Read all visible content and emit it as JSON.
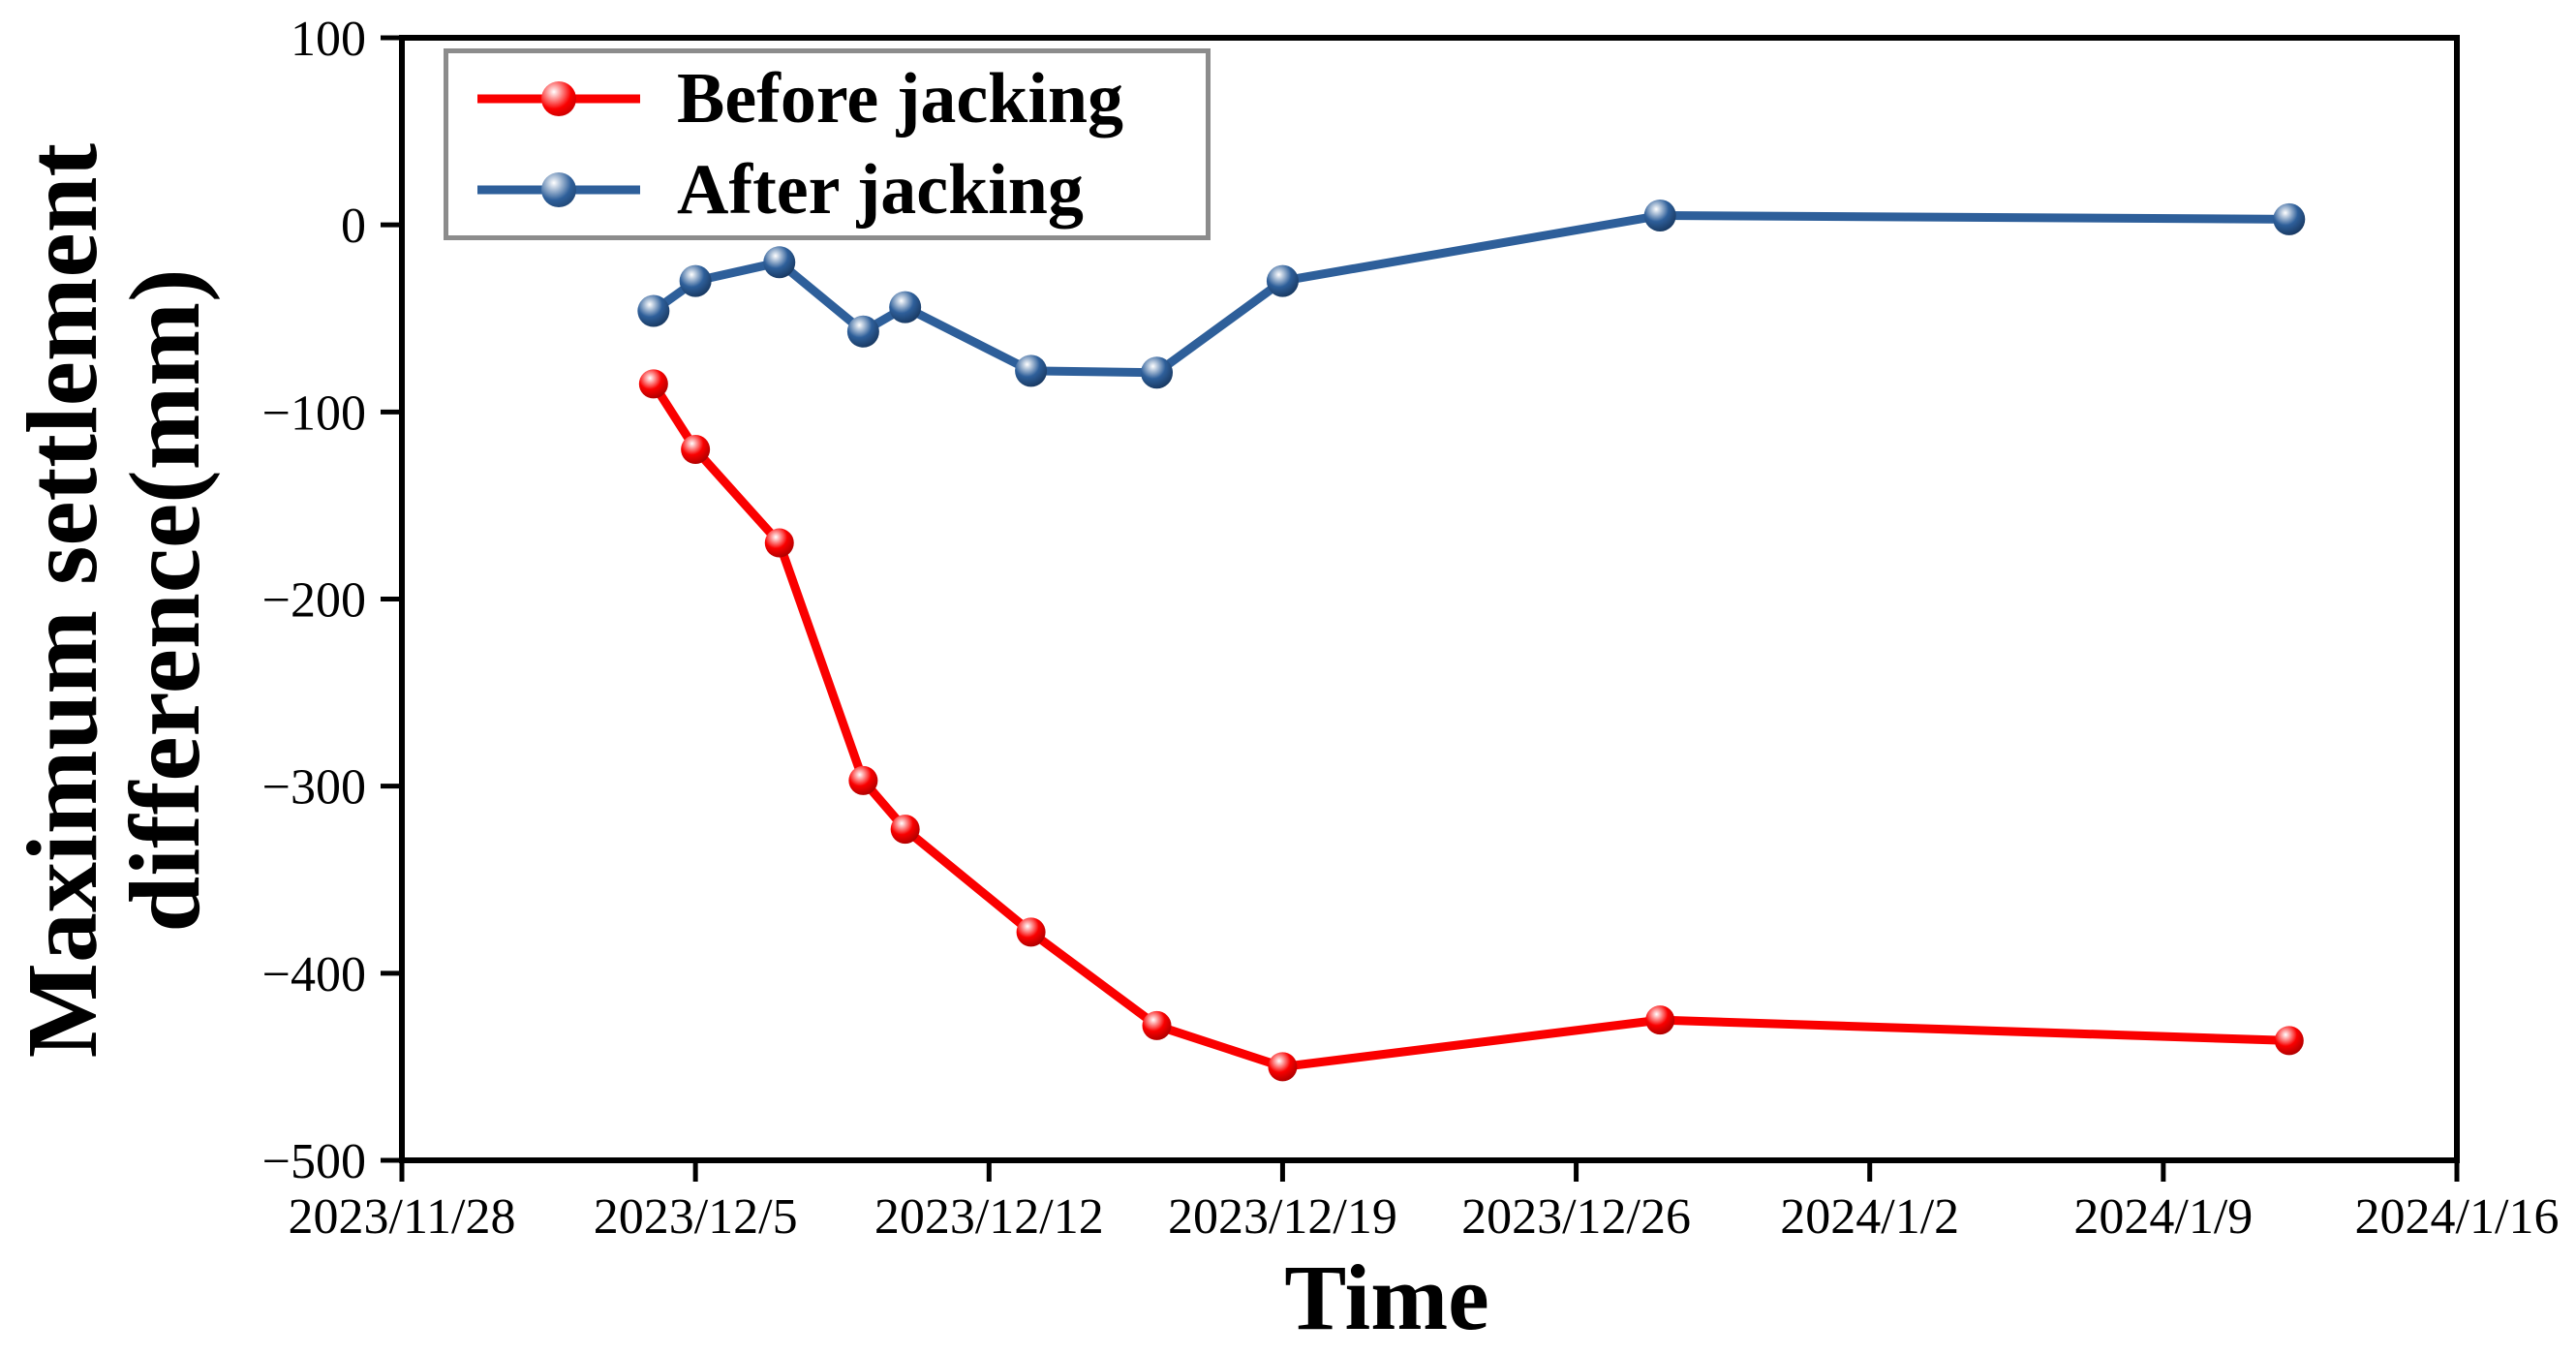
{
  "figure": {
    "background": "#ffffff",
    "axis_color": "#000000",
    "legend_border_color": "#8c8c8c"
  },
  "chart_data": {
    "type": "line",
    "title": "",
    "xlabel": "Time",
    "ylabel": "Maximum settlement difference(mm)",
    "ylabel_lines": [
      "Maximum settlement",
      "difference(mm)"
    ],
    "legend_position": "top-left",
    "grid": false,
    "ylim": [
      -500,
      100
    ],
    "xlim_days": [
      0,
      49
    ],
    "y_ticks": [
      100,
      0,
      -100,
      -200,
      -300,
      -400,
      -500
    ],
    "x_axis_dates": [
      "2023/11/28",
      "2023/12/5",
      "2023/12/12",
      "2023/12/19",
      "2023/12/26",
      "2024/1/2",
      "2024/1/9",
      "2024/1/16"
    ],
    "x_tick_day_offsets": [
      0,
      7,
      14,
      21,
      28,
      35,
      42,
      49
    ],
    "point_dates": [
      "2023/12/4",
      "2023/12/5",
      "2023/12/7",
      "2023/12/9",
      "2023/12/10",
      "2023/12/13",
      "2023/12/16",
      "2023/12/19",
      "2023/12/28",
      "2024/1/12"
    ],
    "series": [
      {
        "name": "Before jacking",
        "color": "#fa0000",
        "color_dark": "#a80000",
        "marker": "ball",
        "marker_radius": 15,
        "line_width": 9,
        "day_offsets": [
          6,
          7,
          9,
          11,
          12,
          15,
          18,
          21,
          30,
          45
        ],
        "values": [
          -85,
          -120,
          -170,
          -297,
          -323,
          -378,
          -428,
          -450,
          -425,
          -436
        ]
      },
      {
        "name": "After jacking",
        "color": "#2e5f9a",
        "color_dark": "#17365d",
        "marker": "ball",
        "marker_radius": 16.5,
        "line_width": 9,
        "day_offsets": [
          6,
          7,
          9,
          11,
          12,
          15,
          18,
          21,
          30,
          45
        ],
        "values": [
          -46,
          -30,
          -20,
          -57,
          -44,
          -78,
          -79,
          -30,
          5,
          3
        ]
      }
    ]
  }
}
